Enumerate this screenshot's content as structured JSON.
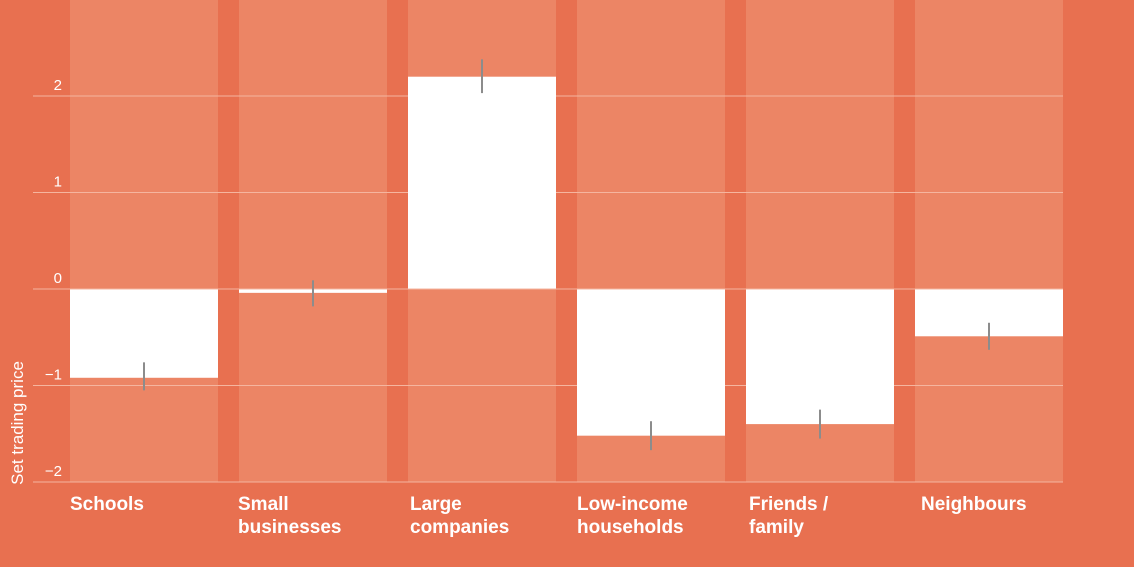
{
  "colors": {
    "background": "#E87050",
    "band": "#EC8565",
    "bar": "#FFFFFF",
    "gridline": "#F5B59F",
    "error_bar": "#8C8C8C",
    "text": "#FFFFFF"
  },
  "chart_data": {
    "type": "bar",
    "title": "",
    "xlabel": "",
    "ylabel": "Set trading price",
    "ylim": [
      -2.05,
      2.95
    ],
    "yticks": [
      2,
      1,
      0,
      -1,
      -2
    ],
    "ytick_labels": [
      "2",
      "1",
      "0",
      "−1",
      "−2"
    ],
    "grid": true,
    "categories": [
      [
        "Schools"
      ],
      [
        "Small",
        "businesses"
      ],
      [
        "Large",
        "companies"
      ],
      [
        "Low-income",
        "households"
      ],
      [
        "Friends /",
        "family"
      ],
      [
        "Neighbours"
      ]
    ],
    "values": [
      -0.92,
      -0.04,
      2.2,
      -1.52,
      -1.4,
      -0.49
    ],
    "error_low": [
      -1.05,
      -0.18,
      2.03,
      -1.67,
      -1.55,
      -0.63
    ],
    "error_high": [
      -0.76,
      0.09,
      2.38,
      -1.37,
      -1.25,
      -0.35
    ]
  }
}
